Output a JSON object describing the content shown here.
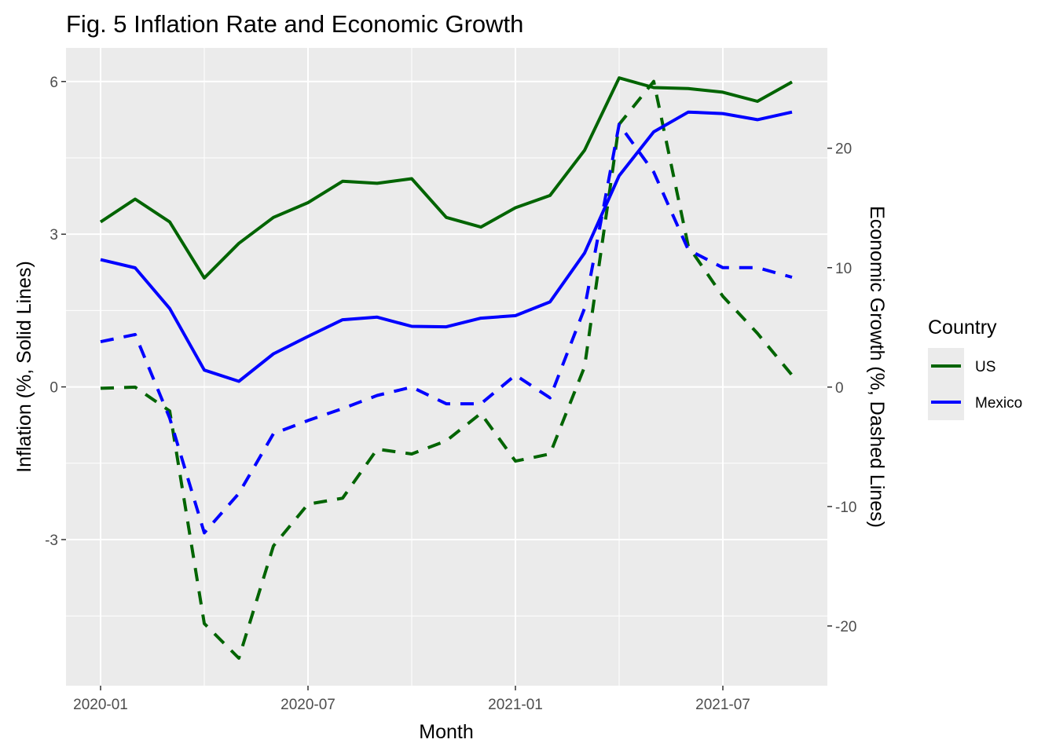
{
  "chart_data": {
    "type": "line",
    "title": "Fig. 5 Inflation Rate and Economic Growth",
    "xlabel": "Month",
    "ylabel_left": "Inflation (%, Solid Lines)",
    "ylabel_right": "Economic Growth (%, Dashed Lines)",
    "x": [
      "2020-01",
      "2020-02",
      "2020-03",
      "2020-04",
      "2020-05",
      "2020-06",
      "2020-07",
      "2020-08",
      "2020-09",
      "2020-10",
      "2020-11",
      "2020-12",
      "2021-01",
      "2021-02",
      "2021-03",
      "2021-04",
      "2021-05",
      "2021-06",
      "2021-07",
      "2021-08",
      "2021-09"
    ],
    "x_ticks": [
      "2020-01",
      "2020-07",
      "2021-01",
      "2021-07"
    ],
    "y_left_ticks": [
      -3,
      0,
      3,
      6
    ],
    "y_right_ticks": [
      -20,
      -10,
      0,
      10,
      20
    ],
    "ylim_left": [
      -5.87,
      6.66
    ],
    "ylim_right": [
      -25.0,
      28.4
    ],
    "grid": true,
    "legend_title": "Country",
    "legend_position": "right",
    "series": [
      {
        "name": "US",
        "color": "#006400",
        "inflation": [
          3.24,
          3.69,
          3.24,
          2.14,
          2.82,
          3.33,
          3.62,
          4.04,
          4.0,
          4.09,
          3.33,
          3.14,
          3.52,
          3.76,
          4.65,
          6.07,
          5.88,
          5.86,
          5.79,
          5.61,
          5.99
        ],
        "growth": [
          -0.1,
          0.0,
          -2.0,
          -19.8,
          -22.7,
          -13.3,
          -9.8,
          -9.3,
          -5.2,
          -5.6,
          -4.5,
          -2.2,
          -6.2,
          -5.6,
          1.7,
          22.0,
          25.6,
          11.8,
          7.6,
          4.5,
          1.0
        ]
      },
      {
        "name": "Mexico",
        "color": "#0000ff",
        "inflation": [
          2.5,
          2.34,
          1.54,
          0.33,
          0.11,
          0.65,
          0.99,
          1.32,
          1.37,
          1.19,
          1.18,
          1.35,
          1.4,
          1.67,
          2.63,
          4.15,
          5.01,
          5.4,
          5.37,
          5.25,
          5.4
        ],
        "growth": [
          3.8,
          4.4,
          -2.6,
          -12.2,
          -8.9,
          -3.9,
          -2.8,
          -1.8,
          -0.7,
          0.0,
          -1.4,
          -1.4,
          1.0,
          -0.9,
          6.6,
          22.0,
          18.0,
          11.5,
          10.0,
          10.0,
          9.2
        ]
      }
    ]
  }
}
